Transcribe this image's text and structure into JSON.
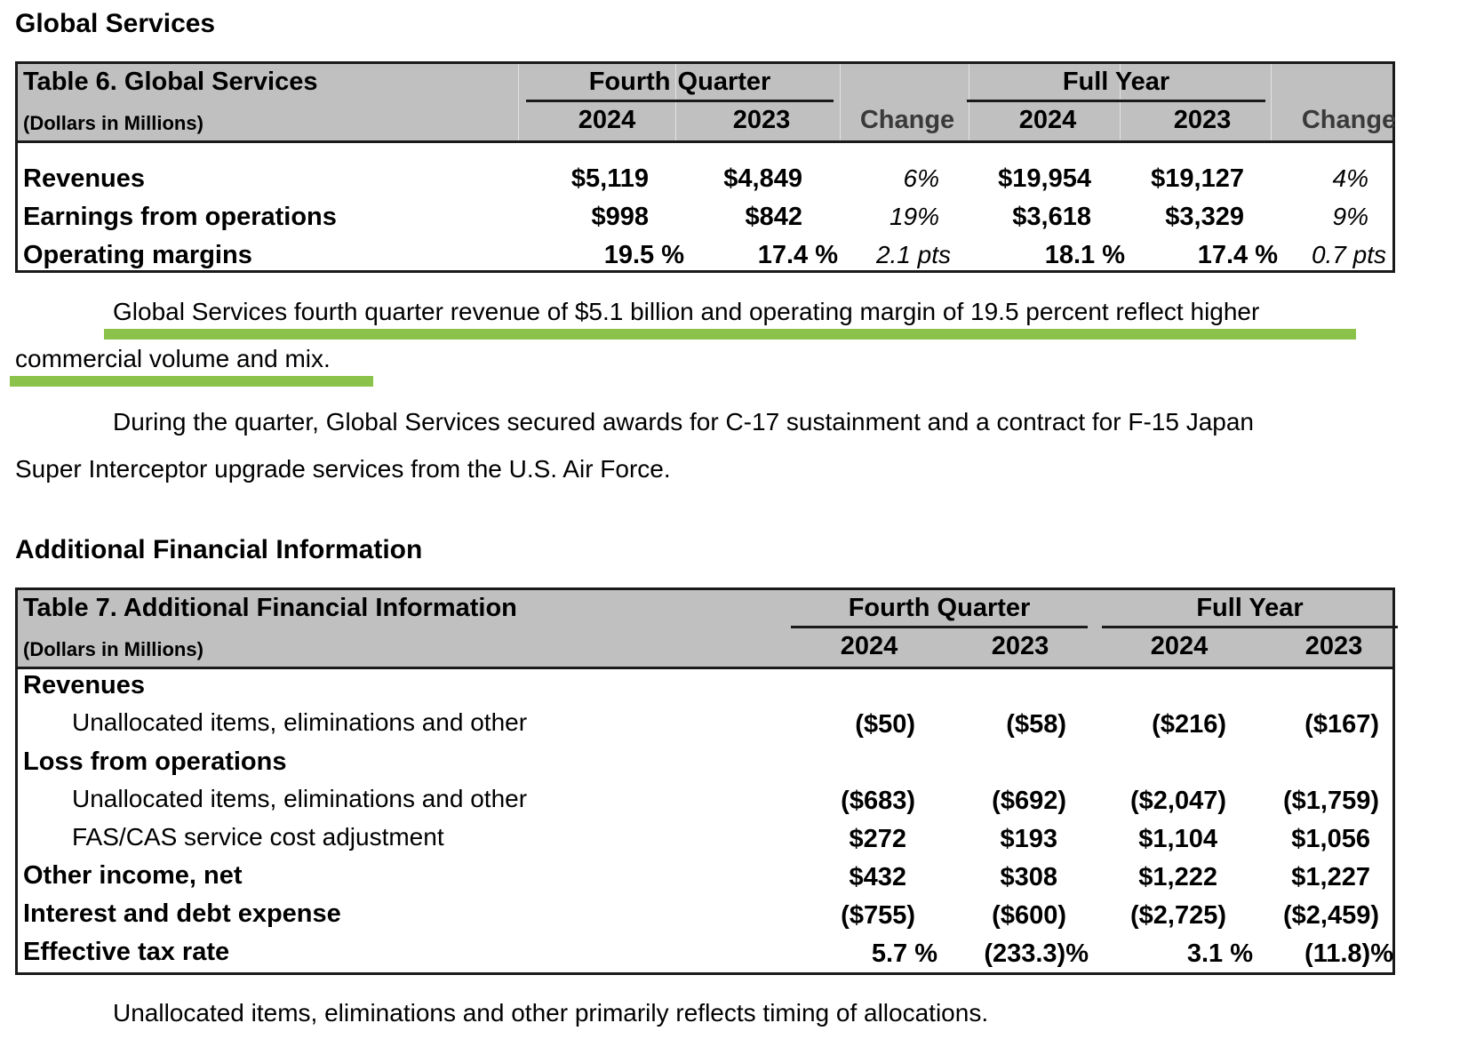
{
  "section1_heading": "Global Services",
  "table6": {
    "title": "Table 6. Global Services",
    "unit": "(Dollars in Millions)",
    "group_q": "Fourth Quarter",
    "group_y": "Full Year",
    "y2024": "2024",
    "y2023": "2023",
    "change": "Change",
    "rows": [
      {
        "label": "Revenues",
        "q24": "$5,119",
        "q23": "$4,849",
        "qch": "6%",
        "y24": "$19,954",
        "y23": "$19,127",
        "ych": "4%"
      },
      {
        "label": "Earnings from operations",
        "q24": "$998",
        "q23": "$842",
        "qch": "19%",
        "y24": "$3,618",
        "y23": "$3,329",
        "ych": "9%"
      },
      {
        "label": "Operating margins",
        "q24": "19.5 %",
        "q23": "17.4 %",
        "qch": "2.1 pts",
        "y24": "18.1 %",
        "y23": "17.4 %",
        "ych": "0.7 pts"
      }
    ]
  },
  "para1": {
    "line1": "Global Services fourth quarter revenue of $5.1 billion and operating margin of 19.5 percent reflect higher",
    "line2": "commercial volume and mix.",
    "highlight_color": "#8bc34a"
  },
  "para2": {
    "line1": "During the quarter, Global Services secured awards for C-17 sustainment and a contract for F-15 Japan",
    "line2": "Super Interceptor upgrade services from the U.S. Air Force."
  },
  "section2_heading": "Additional Financial Information",
  "table7": {
    "title": "Table 7. Additional Financial Information",
    "unit": "(Dollars in Millions)",
    "group_q": "Fourth Quarter",
    "group_y": "Full Year",
    "y2024": "2024",
    "y2023": "2023",
    "rows": [
      {
        "label": "Revenues",
        "bold": true,
        "indent": false,
        "q24": "",
        "q23": "",
        "y24": "",
        "y23": ""
      },
      {
        "label": "Unallocated items, eliminations and other",
        "bold": false,
        "indent": true,
        "q24": "($50)",
        "q23": "($58)",
        "y24": "($216)",
        "y23": "($167)"
      },
      {
        "label": "Loss from operations",
        "bold": true,
        "indent": false,
        "q24": "",
        "q23": "",
        "y24": "",
        "y23": ""
      },
      {
        "label": "Unallocated items, eliminations and other",
        "bold": false,
        "indent": true,
        "q24": "($683)",
        "q23": "($692)",
        "y24": "($2,047)",
        "y23": "($1,759)"
      },
      {
        "label": "FAS/CAS service cost adjustment",
        "bold": false,
        "indent": true,
        "q24": "$272",
        "q23": "$193",
        "y24": "$1,104",
        "y23": "$1,056"
      },
      {
        "label": "Other income, net",
        "bold": true,
        "indent": false,
        "q24": "$432",
        "q23": "$308",
        "y24": "$1,222",
        "y23": "$1,227"
      },
      {
        "label": "Interest and debt expense",
        "bold": true,
        "indent": false,
        "q24": "($755)",
        "q23": "($600)",
        "y24": "($2,725)",
        "y23": "($2,459)"
      },
      {
        "label": "Effective tax rate",
        "bold": true,
        "indent": false,
        "q24": "5.7 %",
        "q23": "(233.3)%",
        "y24": "3.1 %",
        "y23": "(11.8)%"
      }
    ]
  },
  "para3": "Unallocated items, eliminations and other primarily reflects timing of allocations."
}
